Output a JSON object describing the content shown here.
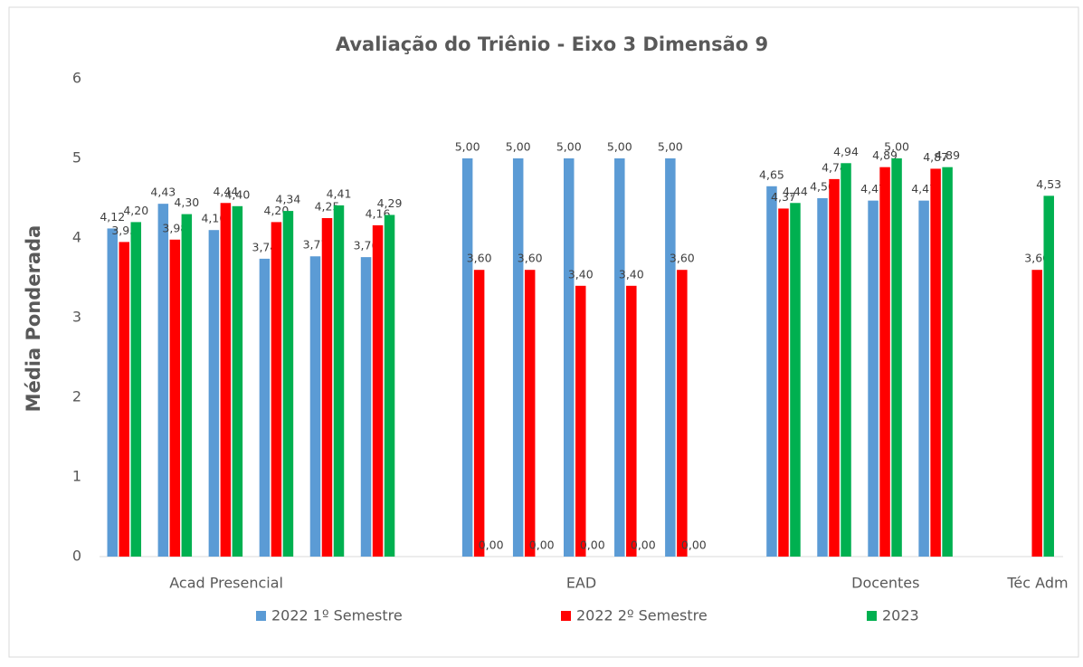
{
  "chart_data": {
    "type": "bar",
    "title": "Avaliação do Triênio - Eixo 3 Dimensão 9",
    "y_label": "Média Ponderada",
    "categories": [
      null,
      null,
      "Acad Presencial",
      null,
      null,
      null,
      null,
      null,
      null,
      "EAD",
      null,
      null,
      null,
      null,
      null,
      "Docentes",
      null,
      null,
      "Téc Adm"
    ],
    "series": [
      {
        "name": "2022 1º Semestre",
        "color": "#5b9bd5",
        "values": [
          4.12,
          4.43,
          4.1,
          3.74,
          3.77,
          3.76,
          null,
          5.0,
          5.0,
          5.0,
          5.0,
          5.0,
          null,
          4.65,
          4.5,
          4.47,
          4.47,
          null,
          null
        ],
        "value_labels": [
          "4,12",
          "4,43",
          "4,10",
          "3,74",
          "3,77",
          "3,76",
          null,
          "5,00",
          "5,00",
          "5,00",
          "5,00",
          "5,00",
          null,
          "4,65",
          "4,50",
          "4,47",
          "4,47",
          null,
          null
        ]
      },
      {
        "name": "2022 2º Semestre",
        "color": "#ff0000",
        "values": [
          3.95,
          3.98,
          4.44,
          4.2,
          4.25,
          4.16,
          null,
          3.6,
          3.6,
          3.4,
          3.4,
          3.6,
          null,
          4.37,
          4.74,
          4.89,
          4.87,
          null,
          3.6
        ],
        "value_labels": [
          "3,95",
          "3,98",
          "4,44",
          "4,20",
          "4,25",
          "4,16",
          null,
          "3,60",
          "3,60",
          "3,40",
          "3,40",
          "3,60",
          null,
          "4,37",
          "4,74",
          "4,89",
          "4,87",
          null,
          "3,60"
        ]
      },
      {
        "name": "2023",
        "color": "#00b050",
        "values": [
          4.2,
          4.3,
          4.4,
          4.34,
          4.41,
          4.29,
          null,
          0,
          0,
          0,
          0,
          0,
          null,
          4.44,
          4.94,
          5.0,
          4.89,
          null,
          4.53
        ],
        "value_labels": [
          "4,20",
          "4,30",
          "4,40",
          "4,34",
          "4,41",
          "4,29",
          null,
          "0,00",
          "0,00",
          "0,00",
          "0,00",
          "0,00",
          null,
          "4,44",
          "4,94",
          "5,00",
          "4,89",
          null,
          "4,53"
        ]
      }
    ],
    "ylim": [
      0,
      6
    ],
    "yticks": [
      0,
      1,
      2,
      3,
      4,
      5,
      6
    ],
    "grid": false,
    "legend": "bottom"
  }
}
